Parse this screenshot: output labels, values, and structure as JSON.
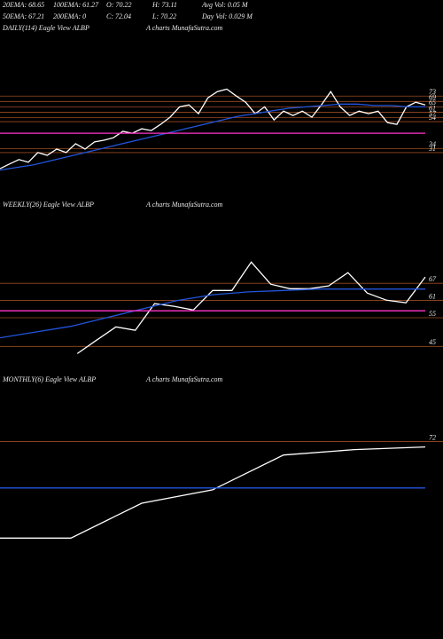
{
  "header": {
    "rows": [
      [
        "20EMA: 68.65",
        "100EMA: 61.27",
        "O: 70.22",
        "H: 73.11",
        "Avg Vol: 0.05 M"
      ],
      [
        "50EMA: 67.21",
        "200EMA: 0",
        "C: 72.04",
        "L: 70.22",
        "Day Vol: 0.029 M"
      ]
    ]
  },
  "chart_data": [
    {
      "type": "line",
      "label": "DAILY(114) Eagle  View  ALBP",
      "source": "A charts MunafaSutra.com",
      "ylim": [
        -4,
        118
      ],
      "yticks": [
        73,
        69,
        65,
        61,
        57,
        54,
        34,
        31
      ],
      "series": [
        {
          "color": "#ffffff",
          "values": [
            19,
            22.5,
            25.8,
            23.8,
            31,
            29,
            33.6,
            31,
            37.6,
            33.6,
            38.9,
            40.2,
            42,
            46.8,
            45.4,
            48.7,
            47.4,
            52,
            57.3,
            65,
            66.4,
            59.9,
            71.7,
            76.3,
            78.2,
            73,
            68.4,
            59.9,
            65,
            55.3,
            61.8,
            58.6,
            61.8,
            57.3,
            66.4,
            76.3,
            65,
            58.6,
            61.8,
            59.9,
            61.8,
            53.3,
            52,
            65,
            68.4,
            66.4
          ]
        },
        {
          "color": "#2255dd",
          "values": [
            18,
            20,
            22,
            25,
            28,
            31,
            34,
            37,
            40,
            43,
            46,
            49,
            52,
            55,
            58,
            60,
            62,
            64,
            65,
            66,
            67,
            67,
            66,
            66,
            65,
            65
          ]
        },
        {
          "color": "#ff33cc",
          "values": [
            45.4,
            45.4
          ]
        }
      ]
    },
    {
      "type": "line",
      "label": "WEEKLY(26) Eagle  View  ALBP",
      "source": "A charts MunafaSutra.com",
      "ylim": [
        42,
        91.5
      ],
      "yticks": [
        67,
        61,
        55,
        45
      ],
      "series": [
        {
          "color": "#ffffff",
          "values": [
            null,
            null,
            null,
            null,
            42.5,
            47.2,
            51.8,
            50.6,
            59.9,
            59,
            57.7,
            64.5,
            64.5,
            74.4,
            66.7,
            65.1,
            65.1,
            66.1,
            70.7,
            63.6,
            61.1,
            60.2,
            69.2
          ]
        },
        {
          "color": "#2255dd",
          "values": [
            48,
            50,
            52,
            55,
            58,
            61,
            63,
            64,
            64.5,
            65,
            65,
            65,
            65
          ]
        },
        {
          "color": "#ff33cc",
          "values": [
            57.4,
            57.4
          ]
        }
      ]
    },
    {
      "type": "line",
      "label": "MONTHLY(6) Eagle  View  ALBP",
      "source": "A charts MunafaSutra.com",
      "ylim": [
        0,
        101
      ],
      "yticks": [
        72
      ],
      "series": [
        {
          "color": "#ffffff",
          "values": [
            36,
            36,
            49,
            54,
            67,
            69,
            70
          ]
        },
        {
          "color": "#2255dd",
          "values": [
            54.7,
            54.7
          ]
        }
      ]
    }
  ]
}
